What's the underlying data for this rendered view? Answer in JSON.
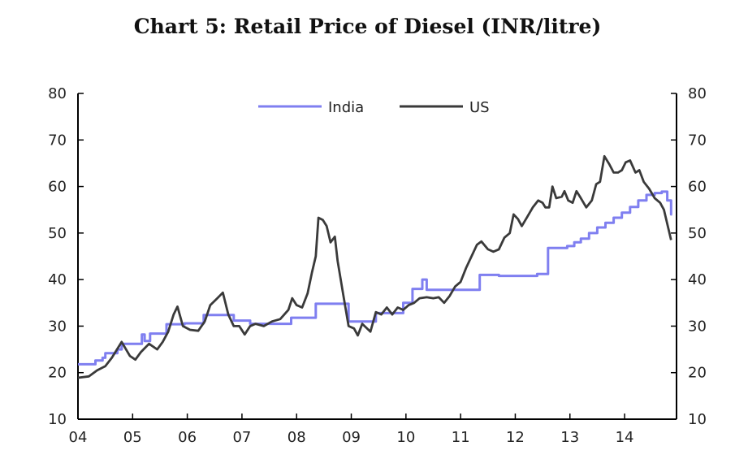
{
  "chart_data": {
    "type": "line",
    "title": "Chart 5: Retail Price of Diesel (INR/litre)",
    "xlabel": "",
    "ylabel": "",
    "xlim": [
      2004.0,
      2014.95
    ],
    "ylim": [
      10,
      80
    ],
    "y_ticks": [
      10,
      20,
      30,
      40,
      50,
      60,
      70,
      80
    ],
    "x_ticks": [
      {
        "x": 2004,
        "label": "04"
      },
      {
        "x": 2005,
        "label": "05"
      },
      {
        "x": 2006,
        "label": "06"
      },
      {
        "x": 2007,
        "label": "07"
      },
      {
        "x": 2008,
        "label": "08"
      },
      {
        "x": 2009,
        "label": "09"
      },
      {
        "x": 2010,
        "label": "10"
      },
      {
        "x": 2011,
        "label": "11"
      },
      {
        "x": 2012,
        "label": "12"
      },
      {
        "x": 2013,
        "label": "13"
      },
      {
        "x": 2014,
        "label": "14"
      }
    ],
    "legend_position": "top-center",
    "series": [
      {
        "name": "India",
        "color": "#7f7ff0",
        "style": "step",
        "points": [
          [
            2004.0,
            21.8
          ],
          [
            2004.32,
            22.6
          ],
          [
            2004.45,
            23.2
          ],
          [
            2004.5,
            24.2
          ],
          [
            2004.72,
            25.0
          ],
          [
            2004.8,
            26.2
          ],
          [
            2005.17,
            28.2
          ],
          [
            2005.22,
            26.8
          ],
          [
            2005.32,
            28.4
          ],
          [
            2005.62,
            30.4
          ],
          [
            2005.95,
            30.6
          ],
          [
            2006.3,
            32.4
          ],
          [
            2006.85,
            31.2
          ],
          [
            2007.15,
            30.5
          ],
          [
            2007.9,
            31.8
          ],
          [
            2008.35,
            34.8
          ],
          [
            2008.95,
            31.0
          ],
          [
            2009.45,
            32.8
          ],
          [
            2009.95,
            35.0
          ],
          [
            2010.12,
            38.0
          ],
          [
            2010.3,
            40.0
          ],
          [
            2010.38,
            37.8
          ],
          [
            2011.35,
            41.0
          ],
          [
            2011.7,
            40.8
          ],
          [
            2012.4,
            41.2
          ],
          [
            2012.6,
            46.8
          ],
          [
            2012.95,
            47.2
          ],
          [
            2013.08,
            48.0
          ],
          [
            2013.2,
            48.8
          ],
          [
            2013.35,
            50.0
          ],
          [
            2013.5,
            51.2
          ],
          [
            2013.65,
            52.2
          ],
          [
            2013.8,
            53.3
          ],
          [
            2013.95,
            54.4
          ],
          [
            2014.1,
            55.6
          ],
          [
            2014.25,
            57.0
          ],
          [
            2014.4,
            58.2
          ],
          [
            2014.55,
            58.6
          ],
          [
            2014.68,
            58.9
          ],
          [
            2014.78,
            57.0
          ],
          [
            2014.85,
            54.0
          ]
        ]
      },
      {
        "name": "US",
        "color": "#3a3a3a",
        "style": "line",
        "points": [
          [
            2004.0,
            18.9
          ],
          [
            2004.2,
            19.2
          ],
          [
            2004.35,
            20.5
          ],
          [
            2004.5,
            21.4
          ],
          [
            2004.62,
            23.2
          ],
          [
            2004.8,
            26.6
          ],
          [
            2004.95,
            23.6
          ],
          [
            2005.05,
            22.8
          ],
          [
            2005.15,
            24.4
          ],
          [
            2005.3,
            26.2
          ],
          [
            2005.45,
            25.0
          ],
          [
            2005.55,
            26.6
          ],
          [
            2005.65,
            28.8
          ],
          [
            2005.75,
            32.5
          ],
          [
            2005.82,
            34.2
          ],
          [
            2005.92,
            30.0
          ],
          [
            2006.05,
            29.2
          ],
          [
            2006.2,
            29.0
          ],
          [
            2006.32,
            31.0
          ],
          [
            2006.42,
            34.5
          ],
          [
            2006.55,
            36.0
          ],
          [
            2006.65,
            37.2
          ],
          [
            2006.75,
            32.5
          ],
          [
            2006.85,
            30.0
          ],
          [
            2006.95,
            30.0
          ],
          [
            2007.05,
            28.2
          ],
          [
            2007.15,
            30.0
          ],
          [
            2007.25,
            30.5
          ],
          [
            2007.4,
            30.0
          ],
          [
            2007.55,
            31.0
          ],
          [
            2007.7,
            31.5
          ],
          [
            2007.85,
            33.5
          ],
          [
            2007.92,
            36.0
          ],
          [
            2008.0,
            34.5
          ],
          [
            2008.1,
            34.0
          ],
          [
            2008.2,
            37.0
          ],
          [
            2008.28,
            41.5
          ],
          [
            2008.35,
            45.0
          ],
          [
            2008.4,
            53.3
          ],
          [
            2008.48,
            52.8
          ],
          [
            2008.55,
            51.5
          ],
          [
            2008.62,
            48.0
          ],
          [
            2008.7,
            49.2
          ],
          [
            2008.75,
            44.0
          ],
          [
            2008.85,
            37.0
          ],
          [
            2008.95,
            30.0
          ],
          [
            2009.05,
            29.5
          ],
          [
            2009.12,
            28.0
          ],
          [
            2009.2,
            30.5
          ],
          [
            2009.35,
            28.8
          ],
          [
            2009.45,
            33.0
          ],
          [
            2009.55,
            32.5
          ],
          [
            2009.65,
            34.0
          ],
          [
            2009.75,
            32.5
          ],
          [
            2009.85,
            34.0
          ],
          [
            2009.95,
            33.5
          ],
          [
            2010.05,
            34.5
          ],
          [
            2010.15,
            35.0
          ],
          [
            2010.25,
            36.0
          ],
          [
            2010.38,
            36.2
          ],
          [
            2010.5,
            36.0
          ],
          [
            2010.6,
            36.2
          ],
          [
            2010.7,
            35.0
          ],
          [
            2010.8,
            36.5
          ],
          [
            2010.9,
            38.5
          ],
          [
            2011.0,
            39.5
          ],
          [
            2011.1,
            42.5
          ],
          [
            2011.2,
            45.0
          ],
          [
            2011.3,
            47.5
          ],
          [
            2011.38,
            48.2
          ],
          [
            2011.5,
            46.5
          ],
          [
            2011.6,
            46.0
          ],
          [
            2011.7,
            46.5
          ],
          [
            2011.8,
            49.0
          ],
          [
            2011.9,
            50.0
          ],
          [
            2011.97,
            54.0
          ],
          [
            2012.05,
            53.0
          ],
          [
            2012.12,
            51.5
          ],
          [
            2012.22,
            53.5
          ],
          [
            2012.32,
            55.5
          ],
          [
            2012.42,
            57.0
          ],
          [
            2012.5,
            56.5
          ],
          [
            2012.55,
            55.5
          ],
          [
            2012.62,
            55.5
          ],
          [
            2012.68,
            60.0
          ],
          [
            2012.75,
            57.5
          ],
          [
            2012.85,
            57.8
          ],
          [
            2012.9,
            59.0
          ],
          [
            2012.97,
            57.0
          ],
          [
            2013.05,
            56.5
          ],
          [
            2013.12,
            59.0
          ],
          [
            2013.2,
            57.5
          ],
          [
            2013.3,
            55.5
          ],
          [
            2013.4,
            57.0
          ],
          [
            2013.48,
            60.5
          ],
          [
            2013.55,
            61.0
          ],
          [
            2013.63,
            66.5
          ],
          [
            2013.72,
            64.8
          ],
          [
            2013.8,
            63.0
          ],
          [
            2013.88,
            63.0
          ],
          [
            2013.95,
            63.5
          ],
          [
            2014.02,
            65.2
          ],
          [
            2014.1,
            65.6
          ],
          [
            2014.2,
            63.0
          ],
          [
            2014.27,
            63.5
          ],
          [
            2014.35,
            61.0
          ],
          [
            2014.45,
            59.5
          ],
          [
            2014.55,
            57.5
          ],
          [
            2014.65,
            56.5
          ],
          [
            2014.72,
            55.0
          ],
          [
            2014.8,
            51.0
          ],
          [
            2014.85,
            48.5
          ]
        ]
      }
    ]
  }
}
